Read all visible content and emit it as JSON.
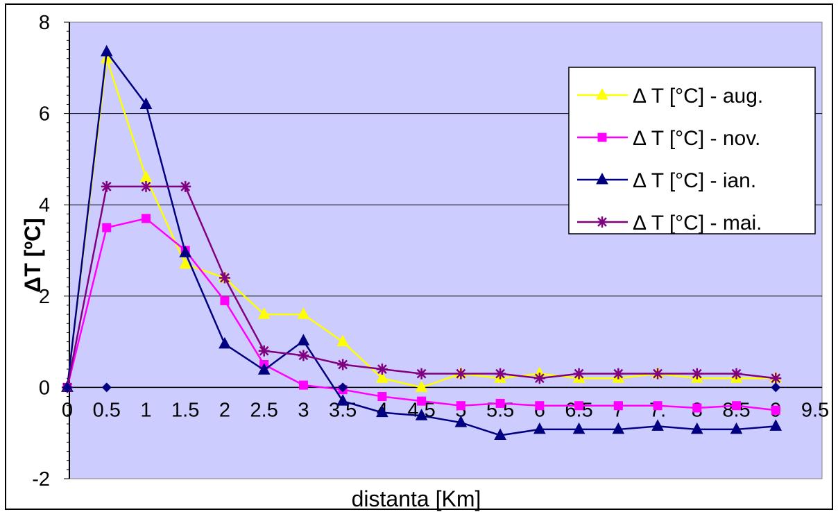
{
  "chart_data": {
    "type": "line",
    "xlabel": "distanta [Km]",
    "ylabel": "ΔT [ºC]",
    "ylim": [
      -2,
      8
    ],
    "yticks": [
      8,
      6,
      4,
      2,
      0,
      -2
    ],
    "y_tick_labels": [
      "8",
      "6",
      "4",
      "2",
      "0",
      "-2"
    ],
    "x_tick_labels": [
      "0",
      "0.5",
      "1",
      "1.5",
      "2",
      "2.5",
      "3",
      "3.5",
      "4",
      "4.5",
      "5",
      "5.5",
      "6",
      "6.5",
      "7",
      "7.",
      "8",
      "8.5",
      "9",
      "9.5"
    ],
    "grid": "horizontal",
    "plot_background": "#ccccff",
    "legend_position": "right",
    "x": [
      0,
      0.5,
      1,
      1.5,
      2,
      2.5,
      3,
      3.5,
      4,
      4.5,
      5,
      5.5,
      6,
      6.5,
      7,
      7.5,
      8,
      8.5,
      9
    ],
    "series": [
      {
        "name": "Δ T [°C] - aug.",
        "color": "#ffff00",
        "marker": "triangle",
        "values": [
          0,
          7.2,
          4.6,
          2.7,
          2.4,
          1.6,
          1.6,
          1.0,
          0.2,
          0,
          0.3,
          0.2,
          0.3,
          0.2,
          0.2,
          0.3,
          0.2,
          0.2,
          0.2
        ]
      },
      {
        "name": "Δ T [°C] - nov.",
        "color": "#ff00ff",
        "marker": "square",
        "values": [
          0,
          3.5,
          3.7,
          3.0,
          1.9,
          0.5,
          0.05,
          -0.05,
          -0.2,
          -0.3,
          -0.4,
          -0.35,
          -0.4,
          -0.4,
          -0.4,
          -0.4,
          -0.45,
          -0.4,
          -0.5
        ]
      },
      {
        "name": "Δ T [°C] - ian.",
        "color": "#000080",
        "marker": "triangle",
        "values": [
          0,
          7.35,
          6.2,
          2.95,
          0.95,
          0.38,
          1.02,
          -0.3,
          -0.55,
          -0.62,
          -0.77,
          -1.05,
          -0.92,
          -0.92,
          -0.92,
          -0.85,
          -0.92,
          -0.92,
          -0.85
        ]
      },
      {
        "name": "Δ T [°C] - mai.",
        "color": "#800080",
        "marker": "star",
        "values": [
          0,
          4.4,
          4.4,
          4.4,
          2.4,
          0.8,
          0.7,
          0.5,
          0.4,
          0.3,
          0.3,
          0.3,
          0.2,
          0.3,
          0.3,
          0.3,
          0.3,
          0.3,
          0.2
        ]
      },
      {
        "color": "#000080",
        "marker": "diamond",
        "x": [
          0,
          0.5,
          3.5,
          9
        ],
        "values": [
          0,
          0,
          0,
          0
        ]
      }
    ]
  }
}
